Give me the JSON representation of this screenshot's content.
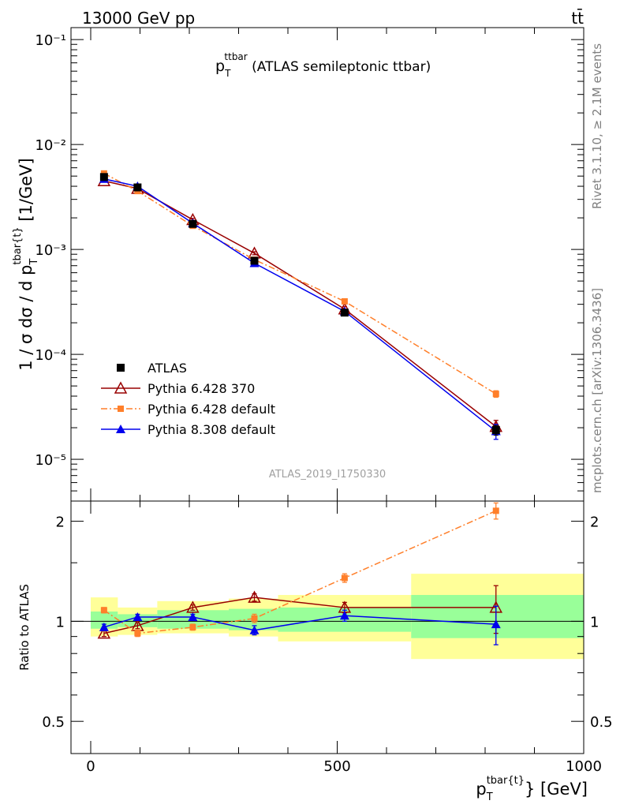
{
  "header": {
    "energy_label": "13000 GeV pp",
    "process_label": "tt̄"
  },
  "side_labels": {
    "rivet": "Rivet 3.1.10, ≥ 2.1M events",
    "source": "mcplots.cern.ch [arXiv:1306.3436]"
  },
  "chart_data": [
    {
      "type": "line",
      "title": "p_T^{ttbar} (ATLAS semileptonic ttbar)",
      "title_parts": {
        "p": "p",
        "sub": "T",
        "sup": "ttbar",
        "rest": " (ATLAS semileptonic ttbar)"
      },
      "xlabel": "p_T^{tbar{t}} [GeV]",
      "ylabel": "1 / σ dσ / d p_T^{tbar{t}} [1/GeV]",
      "yscale": "log",
      "ylim": [
        4e-06,
        0.13
      ],
      "xlim": [
        -40,
        1000
      ],
      "y_tick_labels": [
        "10⁻⁵",
        "10⁻⁴",
        "10⁻³",
        "10⁻²",
        "10⁻¹"
      ],
      "watermark": "ATLAS_2019_I1750330",
      "legend_position": "bottom-left",
      "series": [
        {
          "name": "ATLAS",
          "color": "#000000",
          "marker": "square",
          "x": [
            27,
            95,
            207,
            332,
            515,
            822
          ],
          "y": [
            0.0049,
            0.0039,
            0.00175,
            0.00078,
            0.00025,
            1.9e-05
          ],
          "yerr": [
            0.0002,
            0.0002,
            8e-05,
            4e-05,
            1.5e-05,
            2e-06
          ]
        },
        {
          "name": "Pythia 6.428 370",
          "color": "#990000",
          "marker": "open-triangle",
          "x": [
            27,
            95,
            207,
            332,
            515,
            822
          ],
          "y": [
            0.0045,
            0.0038,
            0.00192,
            0.00092,
            0.00027,
            2.05e-05
          ],
          "yerr": [
            0.0001,
            0.0001,
            6e-05,
            3e-05,
            1.5e-05,
            3e-06
          ]
        },
        {
          "name": "Pythia 6.428 default",
          "color": "#ff7f2a",
          "marker": "small-square",
          "x": [
            27,
            95,
            207,
            332,
            515,
            822
          ],
          "y": [
            0.0053,
            0.0036,
            0.00168,
            0.0008,
            0.00032,
            4.2e-05
          ],
          "yerr": [
            0.0001,
            0.0001,
            5e-05,
            2e-05,
            1e-05,
            3e-06
          ]
        },
        {
          "name": "Pythia 8.308 default",
          "color": "#0000ee",
          "marker": "triangle",
          "x": [
            27,
            95,
            207,
            332,
            515,
            822
          ],
          "y": [
            0.0047,
            0.004,
            0.00178,
            0.00074,
            0.000257,
            1.85e-05
          ],
          "yerr": [
            0.0001,
            0.0001,
            5e-05,
            2e-05,
            1e-05,
            3e-06
          ]
        }
      ]
    },
    {
      "type": "line",
      "ylabel": "Ratio to ATLAS",
      "xlabel": "p_T^{tbar{t}} [GeV]",
      "ylim": [
        0.4,
        2.3
      ],
      "xlim": [
        -40,
        1000
      ],
      "x_tick_labels": [
        "0",
        "500",
        "1000"
      ],
      "y_tick_labels": [
        "0.5",
        "1",
        "2"
      ],
      "bins": [
        0,
        55,
        135,
        280,
        380,
        650,
        1000
      ],
      "band_outer": [
        [
          0.9,
          1.18
        ],
        [
          0.91,
          1.1
        ],
        [
          0.92,
          1.15
        ],
        [
          0.9,
          1.17
        ],
        [
          0.87,
          1.2
        ],
        [
          0.77,
          1.39
        ]
      ],
      "band_inner": [
        [
          0.95,
          1.07
        ],
        [
          0.96,
          1.05
        ],
        [
          0.95,
          1.08
        ],
        [
          0.94,
          1.09
        ],
        [
          0.93,
          1.1
        ],
        [
          0.89,
          1.2
        ]
      ],
      "series": [
        {
          "name": "Pythia 6.428 370",
          "color": "#990000",
          "marker": "open-triangle",
          "x": [
            27,
            95,
            207,
            332,
            515,
            822
          ],
          "y": [
            0.92,
            0.97,
            1.1,
            1.18,
            1.1,
            1.1
          ],
          "yerr": [
            0.02,
            0.02,
            0.02,
            0.03,
            0.04,
            0.18
          ]
        },
        {
          "name": "Pythia 6.428 default",
          "color": "#ff7f2a",
          "marker": "small-square",
          "x": [
            27,
            95,
            207,
            332,
            515,
            822
          ],
          "y": [
            1.08,
            0.92,
            0.96,
            1.02,
            1.35,
            2.15
          ],
          "yerr": [
            0.02,
            0.02,
            0.02,
            0.03,
            0.04,
            0.12
          ]
        },
        {
          "name": "Pythia 8.308 default",
          "color": "#0000ee",
          "marker": "triangle",
          "x": [
            27,
            95,
            207,
            332,
            515,
            822
          ],
          "y": [
            0.96,
            1.03,
            1.03,
            0.94,
            1.04,
            0.98
          ],
          "yerr": [
            0.02,
            0.02,
            0.02,
            0.03,
            0.04,
            0.13
          ]
        }
      ]
    }
  ]
}
